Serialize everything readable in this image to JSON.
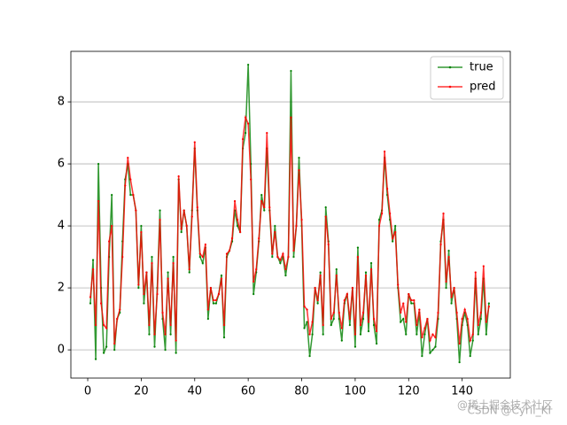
{
  "chart_data": {
    "type": "line",
    "x": [
      1,
      2,
      3,
      4,
      5,
      6,
      7,
      8,
      9,
      10,
      11,
      12,
      13,
      14,
      15,
      16,
      17,
      18,
      19,
      20,
      21,
      22,
      23,
      24,
      25,
      26,
      27,
      28,
      29,
      30,
      31,
      32,
      33,
      34,
      35,
      36,
      37,
      38,
      39,
      40,
      41,
      42,
      43,
      44,
      45,
      46,
      47,
      48,
      49,
      50,
      51,
      52,
      53,
      54,
      55,
      56,
      57,
      58,
      59,
      60,
      61,
      62,
      63,
      64,
      65,
      66,
      67,
      68,
      69,
      70,
      71,
      72,
      73,
      74,
      75,
      76,
      77,
      78,
      79,
      80,
      81,
      82,
      83,
      84,
      85,
      86,
      87,
      88,
      89,
      90,
      91,
      92,
      93,
      94,
      95,
      96,
      97,
      98,
      99,
      100,
      101,
      102,
      103,
      104,
      105,
      106,
      107,
      108,
      109,
      110,
      111,
      112,
      113,
      114,
      115,
      116,
      117,
      118,
      119,
      120,
      121,
      122,
      123,
      124,
      125,
      126,
      127,
      128,
      129,
      130,
      131,
      132,
      133,
      134,
      135,
      136,
      137,
      138,
      139,
      140,
      141,
      142,
      143,
      144,
      145,
      146,
      147,
      148,
      149,
      150
    ],
    "series": [
      {
        "name": "true",
        "color": "#008000",
        "values": [
          1.5,
          2.9,
          -0.3,
          6.0,
          2.0,
          -0.1,
          0.1,
          3.0,
          5.0,
          0.0,
          1.0,
          1.2,
          3.5,
          5.5,
          6.0,
          5.0,
          5.0,
          4.5,
          2.0,
          4.0,
          1.5,
          2.5,
          0.5,
          3.0,
          0.1,
          2.0,
          4.5,
          1.0,
          0.0,
          2.5,
          0.5,
          3.0,
          -0.1,
          5.5,
          3.8,
          4.5,
          4.0,
          2.5,
          4.5,
          6.5,
          4.5,
          3.0,
          2.8,
          3.3,
          1.0,
          2.0,
          1.5,
          1.5,
          1.8,
          2.4,
          0.4,
          3.0,
          3.2,
          3.5,
          4.5,
          4.0,
          3.8,
          6.5,
          7.0,
          9.2,
          6.0,
          1.8,
          2.5,
          3.5,
          5.0,
          4.5,
          6.5,
          4.5,
          3.0,
          4.0,
          3.0,
          2.8,
          3.0,
          2.4,
          3.0,
          9.0,
          3.0,
          4.0,
          6.2,
          4.0,
          0.7,
          0.9,
          -0.2,
          0.5,
          2.0,
          1.5,
          2.5,
          0.5,
          4.6,
          3.5,
          0.8,
          1.0,
          2.6,
          1.0,
          0.3,
          1.5,
          1.8,
          0.8,
          2.0,
          0.1,
          3.3,
          0.5,
          1.0,
          2.5,
          0.6,
          2.8,
          0.8,
          0.2,
          4.2,
          4.5,
          6.2,
          5.0,
          4.2,
          3.5,
          4.0,
          2.0,
          0.9,
          1.0,
          0.5,
          1.8,
          1.5,
          1.5,
          0.5,
          1.2,
          -0.2,
          0.5,
          1.0,
          -0.1,
          0.0,
          0.1,
          1.0,
          3.5,
          4.2,
          2.0,
          3.2,
          1.5,
          2.0,
          1.0,
          -0.4,
          0.8,
          1.2,
          0.8,
          -0.2,
          0.3,
          2.3,
          0.5,
          1.0,
          2.3,
          0.5,
          1.5
        ]
      },
      {
        "name": "pred",
        "color": "#ff0000",
        "values": [
          1.7,
          2.6,
          0.8,
          4.8,
          1.5,
          0.8,
          0.7,
          3.5,
          4.0,
          0.2,
          1.0,
          1.3,
          3.0,
          5.3,
          6.2,
          5.5,
          5.0,
          4.5,
          2.1,
          3.8,
          1.8,
          2.5,
          0.8,
          2.8,
          0.5,
          1.8,
          4.2,
          1.2,
          0.5,
          2.3,
          0.8,
          2.8,
          0.3,
          5.6,
          3.9,
          4.5,
          4.0,
          2.6,
          4.3,
          6.7,
          4.6,
          3.1,
          3.0,
          3.4,
          1.3,
          2.0,
          1.6,
          1.6,
          1.8,
          2.3,
          0.8,
          3.1,
          3.2,
          3.6,
          4.8,
          4.2,
          3.8,
          6.8,
          7.5,
          7.3,
          5.5,
          2.2,
          2.6,
          3.6,
          4.8,
          4.6,
          7.0,
          4.6,
          3.1,
          3.8,
          3.0,
          2.9,
          3.1,
          2.6,
          3.0,
          7.5,
          3.2,
          4.0,
          5.8,
          4.2,
          1.4,
          1.3,
          0.5,
          0.9,
          2.0,
          1.6,
          2.4,
          0.8,
          4.3,
          3.4,
          1.0,
          1.2,
          2.4,
          1.2,
          0.7,
          1.6,
          1.8,
          1.0,
          2.0,
          0.5,
          3.0,
          0.8,
          1.2,
          2.4,
          0.9,
          2.6,
          1.0,
          0.6,
          4.0,
          4.4,
          6.4,
          5.2,
          4.4,
          3.6,
          3.8,
          2.1,
          1.2,
          1.5,
          0.9,
          1.8,
          1.6,
          1.6,
          0.8,
          1.3,
          0.4,
          0.7,
          1.0,
          0.3,
          0.5,
          0.4,
          1.2,
          3.4,
          4.4,
          2.2,
          3.0,
          1.7,
          2.0,
          1.2,
          0.2,
          1.0,
          1.3,
          1.0,
          0.3,
          0.5,
          2.5,
          0.8,
          1.2,
          2.7,
          0.9,
          1.4
        ]
      }
    ],
    "xlim": [
      -6.3,
      158
    ],
    "xticks": [
      0,
      20,
      40,
      60,
      80,
      100,
      120,
      140
    ],
    "ylim": [
      -0.91,
      9.63
    ],
    "yticks": [
      0,
      2,
      4,
      6,
      8
    ],
    "grid": "y",
    "legend": "upper right"
  },
  "watermark": [
    "@稀土掘金技术社区",
    "CSDN @Cyril_KI"
  ]
}
